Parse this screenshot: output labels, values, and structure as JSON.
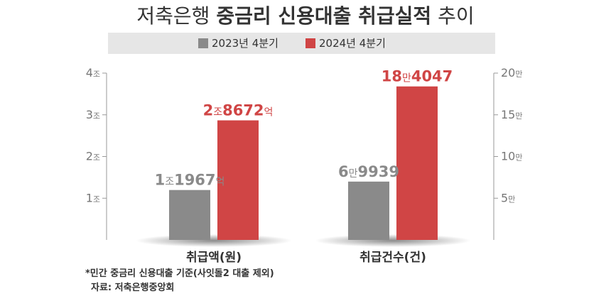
{
  "title": {
    "part1": "저축은행 ",
    "part2": "중금리 신용대출 취급실적",
    "part3": " 추이"
  },
  "colors": {
    "series_2023": "#8a8a8a",
    "series_2024": "#d04545",
    "axis": "#999999",
    "legend_bg": "#e6e6e6",
    "text": "#333333"
  },
  "chart_data": {
    "type": "bar",
    "categories": [
      "취급액(원)",
      "취급건수(건)"
    ],
    "series": [
      {
        "name": "2023년 4분기",
        "values": [
          11967,
          69939
        ]
      },
      {
        "name": "2024년 4분기",
        "values": [
          28672,
          184047
        ]
      }
    ],
    "left_axis": {
      "unit": "억원",
      "ticks": [
        10000,
        20000,
        30000,
        40000
      ],
      "tick_labels": [
        "1조",
        "2조",
        "3조",
        "4조"
      ],
      "ylim": [
        0,
        40000
      ]
    },
    "right_axis": {
      "unit": "건",
      "ticks": [
        50000,
        100000,
        150000,
        200000
      ],
      "tick_labels": [
        "5만",
        "10만",
        "15만",
        "20만"
      ],
      "ylim": [
        0,
        200000
      ]
    },
    "axis_assignment": [
      "left",
      "right"
    ],
    "data_labels": [
      [
        {
          "big1": "1",
          "small1": "조",
          "big2": "1967",
          "small2": "억"
        },
        {
          "big1": "2",
          "small1": "조",
          "big2": "8672",
          "small2": "억"
        }
      ],
      [
        {
          "big1": "6",
          "small1": "만",
          "big2": "9939",
          "small2": ""
        },
        {
          "big1": "18",
          "small1": "만",
          "big2": "4047",
          "small2": ""
        }
      ]
    ],
    "legend_position": "top"
  },
  "footnote": {
    "line1": "*민간 중금리 신용대출 기준(사잇돌2 대출 제외)",
    "line2": "자료: 저축은행중앙회"
  }
}
